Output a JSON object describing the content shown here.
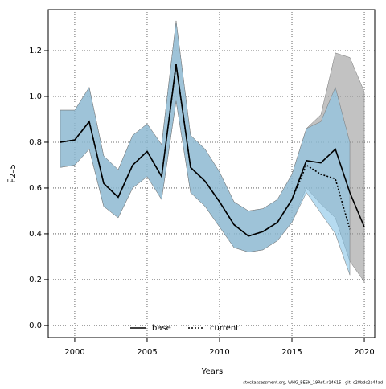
{
  "chart_data": {
    "type": "line",
    "xlabel": "Years",
    "ylabel": "F̄2–5",
    "footnote": "stockassessment.org, WHG_BESK_19Ref, r14615 , git: c28bdc2a44ad",
    "x": [
      1999,
      2000,
      2001,
      2002,
      2003,
      2004,
      2005,
      2006,
      2007,
      2008,
      2009,
      2010,
      2011,
      2012,
      2013,
      2014,
      2015,
      2016,
      2017,
      2018,
      2019,
      2020
    ],
    "series": [
      {
        "name": "base",
        "color": "#000000",
        "dash": "solid",
        "band_color": "#9a9a9a",
        "values": [
          0.8,
          0.81,
          0.89,
          0.62,
          0.56,
          0.7,
          0.76,
          0.65,
          1.14,
          0.69,
          0.63,
          0.54,
          0.44,
          0.39,
          0.41,
          0.45,
          0.55,
          0.72,
          0.71,
          0.77,
          0.58,
          0.43
        ],
        "upper": [
          0.94,
          0.94,
          1.04,
          0.74,
          0.68,
          0.83,
          0.88,
          0.79,
          1.33,
          0.83,
          0.77,
          0.67,
          0.54,
          0.5,
          0.51,
          0.55,
          0.66,
          0.86,
          0.92,
          1.19,
          1.17,
          1.02
        ],
        "lower": [
          0.69,
          0.7,
          0.77,
          0.52,
          0.47,
          0.6,
          0.65,
          0.55,
          0.98,
          0.58,
          0.52,
          0.43,
          0.34,
          0.32,
          0.33,
          0.37,
          0.45,
          0.6,
          0.53,
          0.47,
          0.28,
          0.19
        ]
      },
      {
        "name": "current",
        "color": "#000000",
        "dash": "dotted",
        "band_color": "#86c3e6",
        "values": [
          0.8,
          0.81,
          0.89,
          0.62,
          0.56,
          0.7,
          0.76,
          0.65,
          1.14,
          0.69,
          0.63,
          0.54,
          0.44,
          0.39,
          0.41,
          0.45,
          0.55,
          0.7,
          0.66,
          0.64,
          0.42,
          null
        ],
        "upper": [
          0.94,
          0.94,
          1.04,
          0.74,
          0.68,
          0.83,
          0.88,
          0.79,
          1.33,
          0.83,
          0.77,
          0.67,
          0.54,
          0.5,
          0.51,
          0.55,
          0.66,
          0.86,
          0.89,
          1.04,
          0.8,
          null
        ],
        "lower": [
          0.69,
          0.7,
          0.77,
          0.52,
          0.47,
          0.6,
          0.65,
          0.55,
          0.98,
          0.58,
          0.52,
          0.43,
          0.34,
          0.32,
          0.33,
          0.37,
          0.45,
          0.58,
          0.49,
          0.4,
          0.22,
          null
        ]
      }
    ],
    "xlim": [
      1998.17,
      2020.72
    ],
    "ylim": [
      -0.053,
      1.379
    ],
    "xticks": [
      2000,
      2005,
      2010,
      2015,
      2020
    ],
    "yticks": [
      {
        "value": 0,
        "label": "0.0"
      },
      0.2,
      0.4,
      0.6,
      0.8,
      {
        "value": 1,
        "label": "1.0"
      },
      1.2
    ],
    "grid": true,
    "legend": "bottom"
  }
}
